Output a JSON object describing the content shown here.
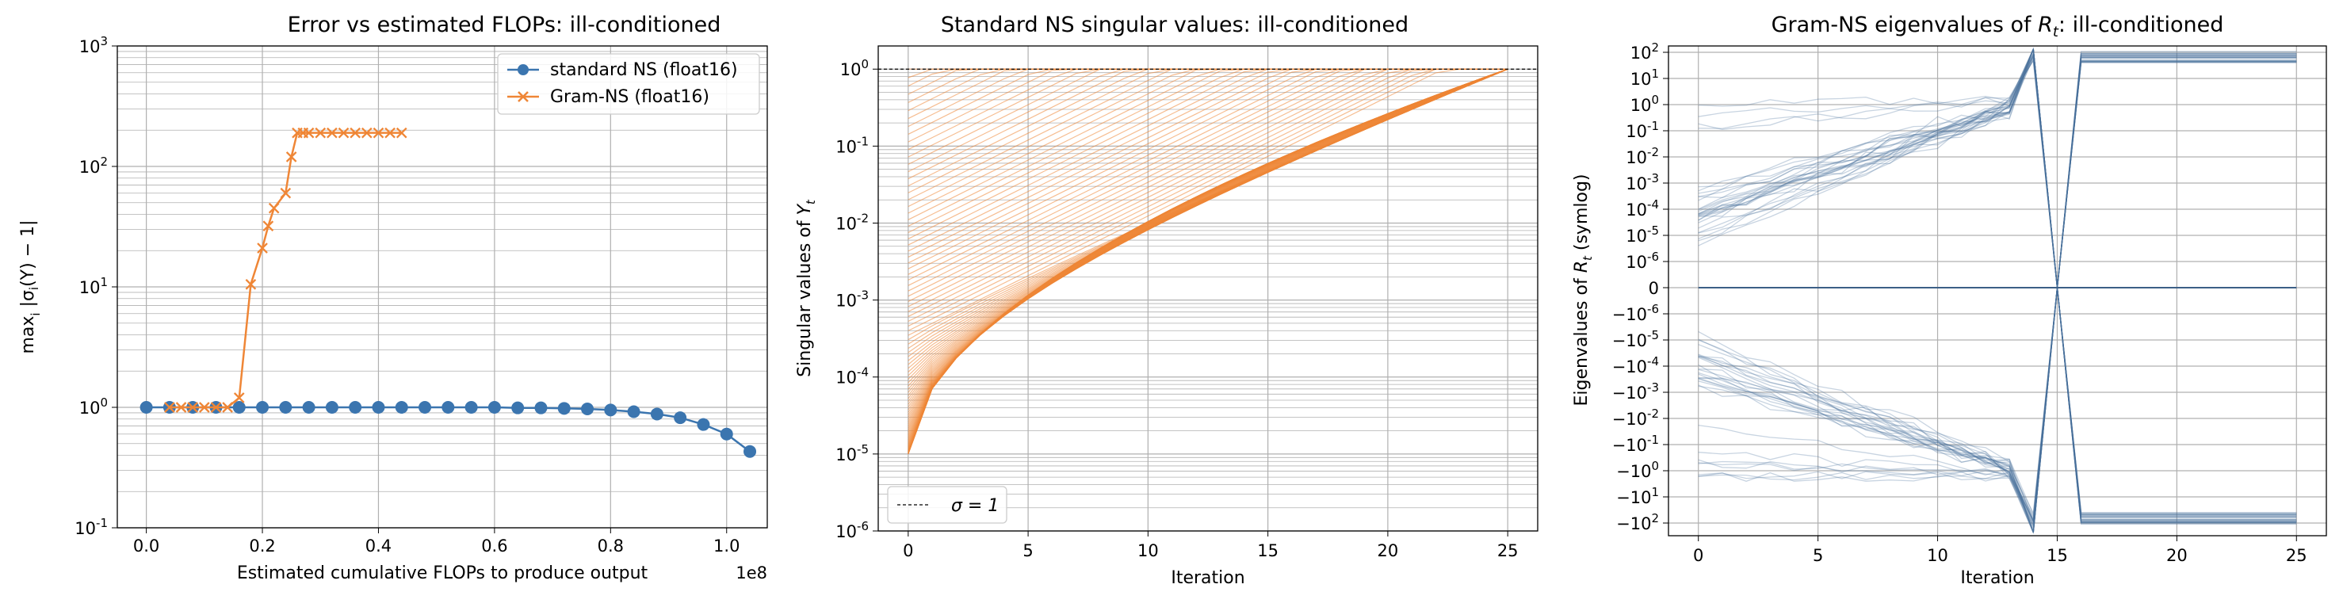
{
  "colors": {
    "blue": "#3b75af",
    "orange": "#ef8636",
    "grid": "#b0b0b0",
    "steel": "#4a6f9a"
  },
  "chart_data": [
    {
      "type": "line",
      "title": "Error vs estimated FLOPs: ill-conditioned",
      "xlabel": "Estimated cumulative FLOPs to produce output",
      "ylabel": "max_i |σ_i(Y) − 1|",
      "x_scale_note": "1e8",
      "xlim": [
        -0.05,
        1.07
      ],
      "ylim": [
        0.1,
        1000
      ],
      "y_scale": "log",
      "x_ticks": [
        "0.0",
        "0.2",
        "0.4",
        "0.6",
        "0.8",
        "1.0"
      ],
      "y_ticks": [
        "10^-1",
        "10^0",
        "10^1",
        "10^2",
        "10^3"
      ],
      "grid": true,
      "legend_position": "top-right",
      "series": [
        {
          "name": "standard NS (float16)",
          "marker": "circle",
          "x": [
            0.0,
            0.04,
            0.08,
            0.12,
            0.16,
            0.2,
            0.24,
            0.28,
            0.32,
            0.36,
            0.4,
            0.44,
            0.48,
            0.52,
            0.56,
            0.6,
            0.64,
            0.68,
            0.72,
            0.76,
            0.8,
            0.84,
            0.88,
            0.92,
            0.96,
            1.0,
            1.04
          ],
          "y": [
            1.0,
            1.0,
            1.0,
            1.0,
            1.0,
            1.0,
            1.0,
            1.0,
            1.0,
            1.0,
            1.0,
            1.0,
            1.0,
            1.0,
            1.0,
            1.0,
            0.99,
            0.99,
            0.98,
            0.97,
            0.95,
            0.92,
            0.88,
            0.82,
            0.72,
            0.6,
            0.43
          ]
        },
        {
          "name": "Gram-NS (float16)",
          "marker": "x",
          "x": [
            0.04,
            0.06,
            0.08,
            0.1,
            0.12,
            0.14,
            0.16,
            0.18,
            0.2,
            0.21,
            0.22,
            0.24,
            0.25,
            0.26,
            0.27,
            0.28,
            0.3,
            0.32,
            0.34,
            0.36,
            0.38,
            0.4,
            0.42,
            0.44
          ],
          "y": [
            1.0,
            1.0,
            1.0,
            1.0,
            1.0,
            1.0,
            1.2,
            10.5,
            21,
            32,
            45,
            60,
            120,
            190,
            190,
            190,
            190,
            190,
            190,
            190,
            190,
            190,
            190,
            190
          ]
        }
      ]
    },
    {
      "type": "line",
      "title": "Standard NS singular values: ill-conditioned",
      "xlabel": "Iteration",
      "ylabel": "Singular values of Y_t",
      "xlim": [
        -1.25,
        26.25
      ],
      "ylim": [
        1e-06,
        2
      ],
      "y_scale": "log",
      "x_ticks": [
        "0",
        "5",
        "10",
        "15",
        "20",
        "25"
      ],
      "y_ticks": [
        "10^-6",
        "10^-5",
        "10^-4",
        "10^-3",
        "10^-2",
        "10^-1",
        "10^0"
      ],
      "grid": true,
      "legend_position": "bottom-left",
      "reference_line": {
        "name": "σ = 1",
        "y": 1
      },
      "series_summary": {
        "count": 100,
        "start_range": [
          1e-05,
          1.0
        ],
        "end_value": 1.0,
        "iterations": 25
      }
    },
    {
      "type": "line",
      "title": "Gram-NS eigenvalues of R_t: ill-conditioned",
      "xlabel": "Iteration",
      "ylabel": "Eigenvalues of R_t (symlog)",
      "xlim": [
        -1.25,
        26.25
      ],
      "y_scale": "symlog",
      "x_ticks": [
        "0",
        "5",
        "10",
        "15",
        "20",
        "25"
      ],
      "y_ticks": [
        "10^2",
        "10^1",
        "10^0",
        "10^-1",
        "10^-2",
        "10^-3",
        "10^-4",
        "10^-5",
        "10^-6",
        "0",
        "−10^-6",
        "−10^-5",
        "−10^-4",
        "−10^-3",
        "−10^-2",
        "−10^-1",
        "−10^0",
        "−10^1",
        "−10^2"
      ],
      "grid": true,
      "series_summary": {
        "count": 60,
        "blowup_iteration": 14,
        "collapse_iteration": 15,
        "iterations": 25
      }
    }
  ]
}
